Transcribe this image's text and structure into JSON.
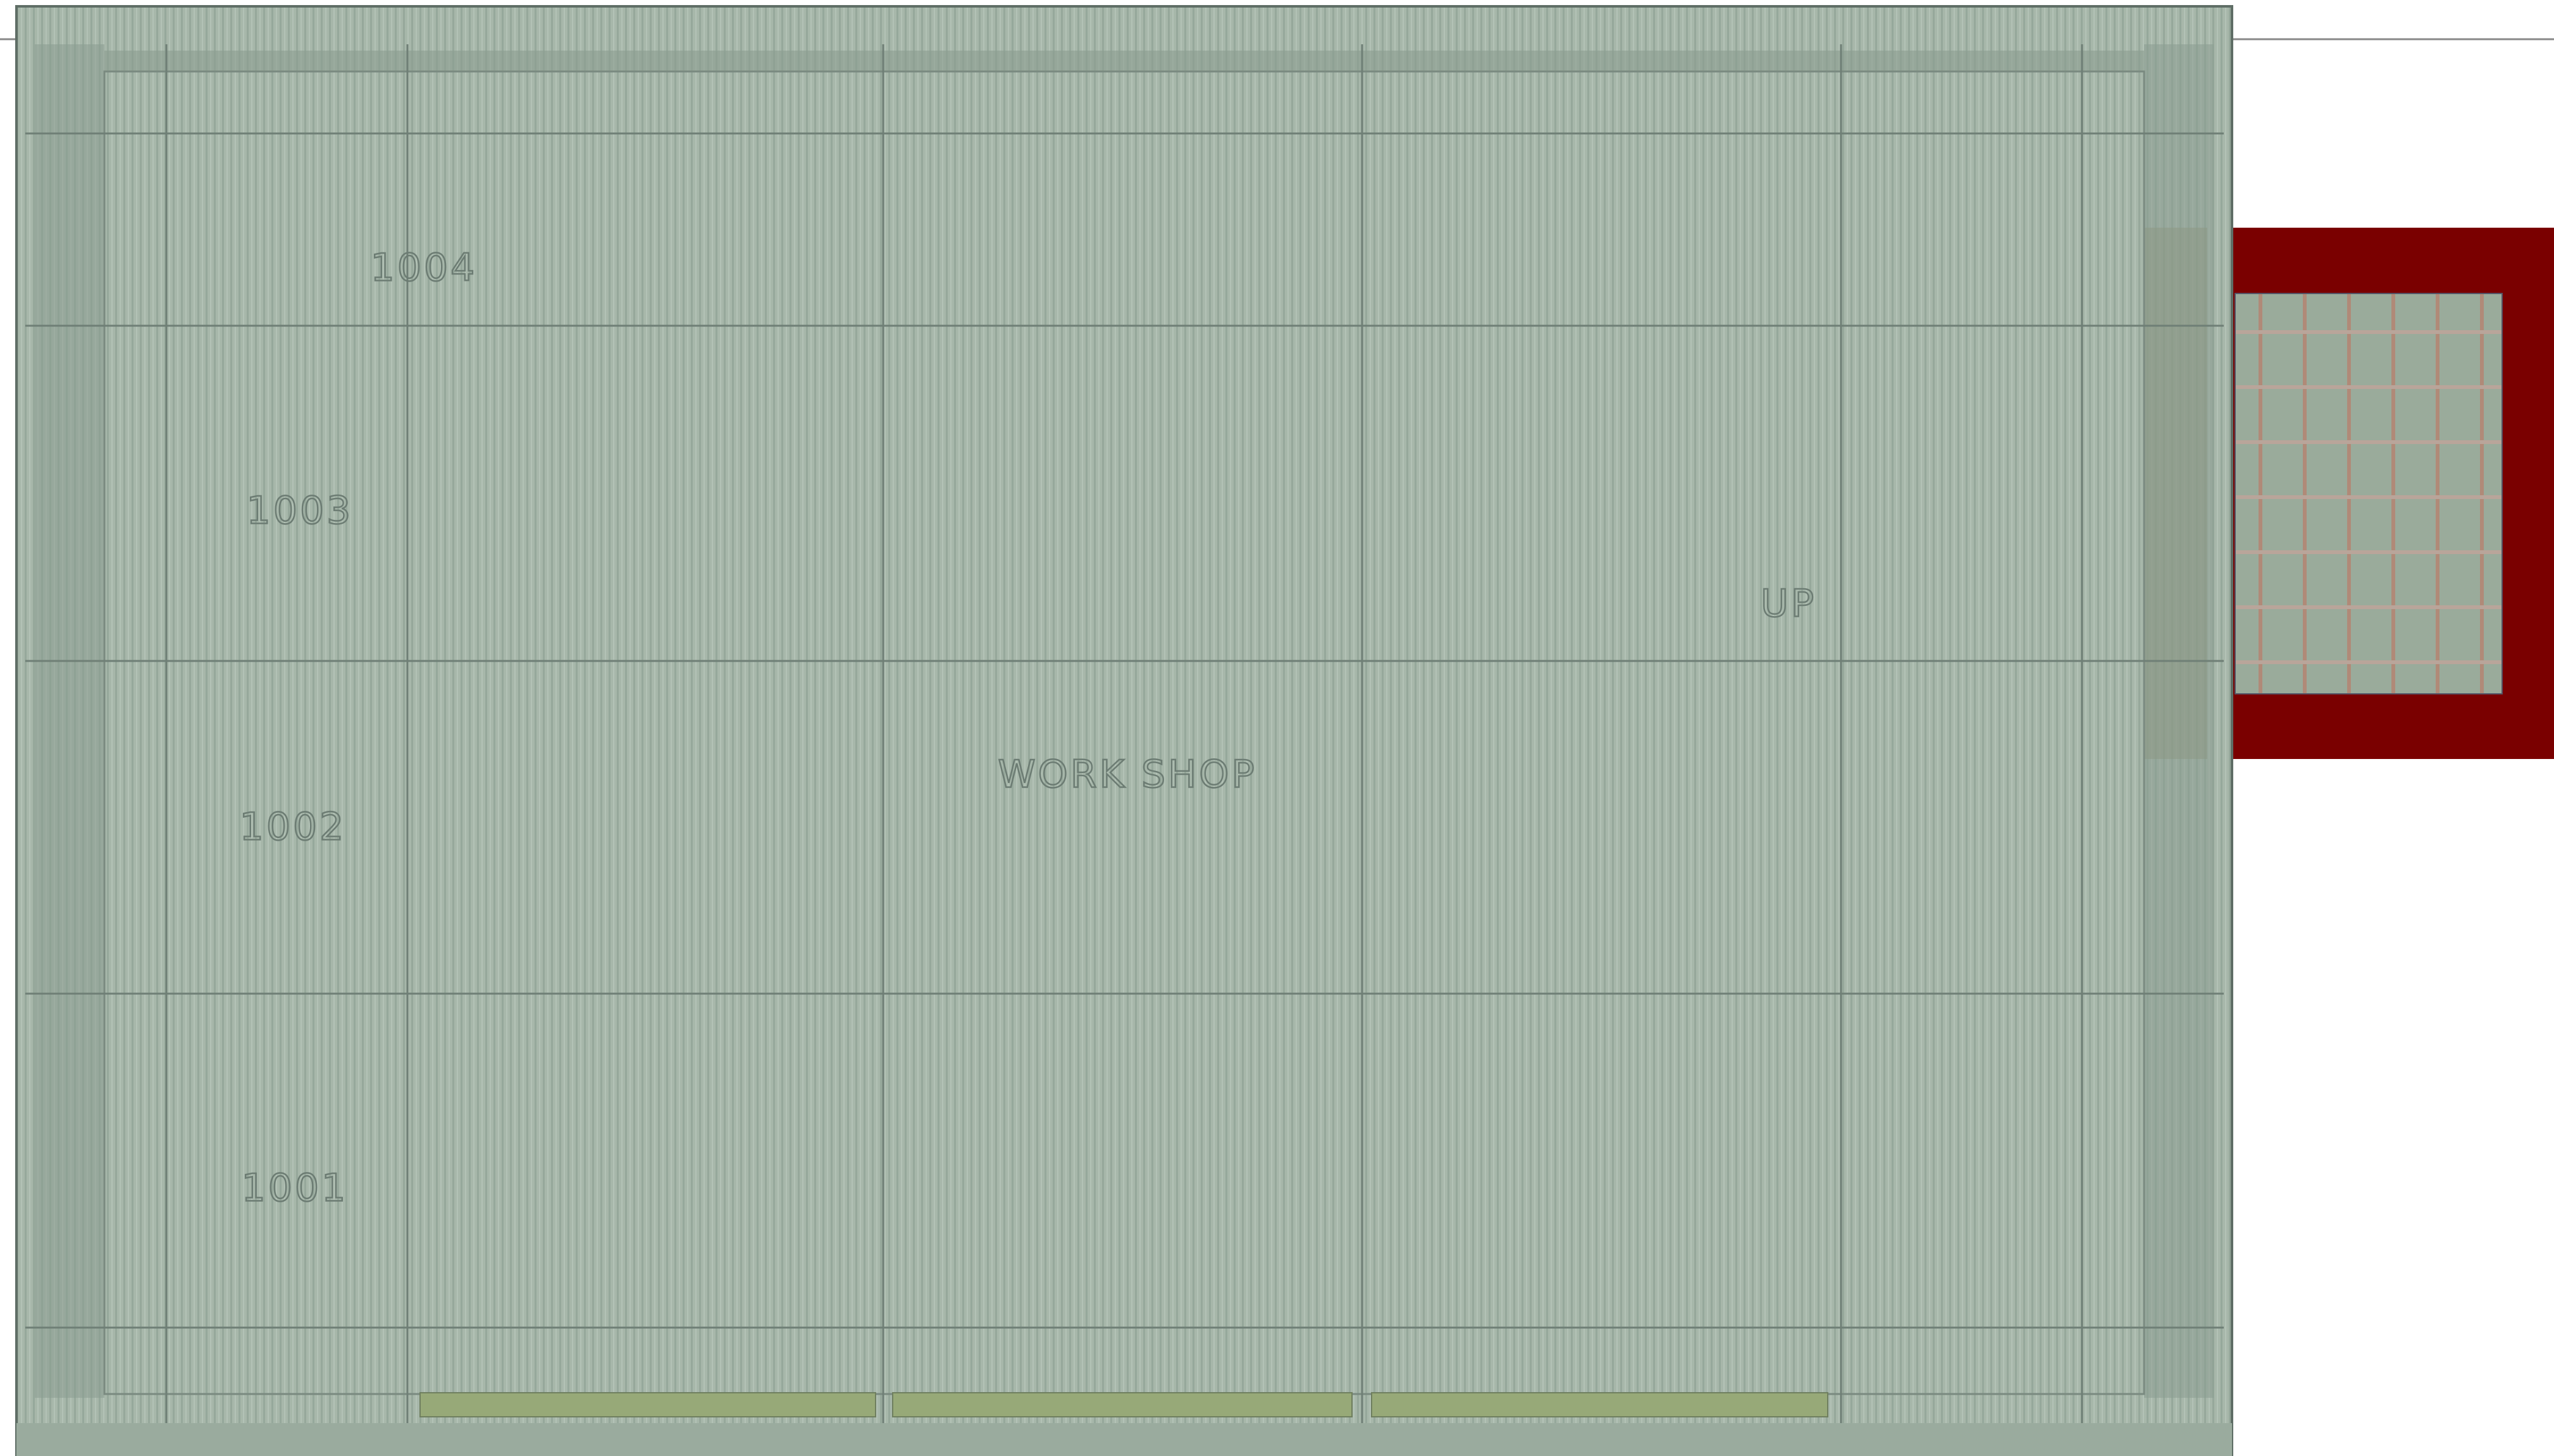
{
  "labels": {
    "room_1004": "1004",
    "room_1003": "1003",
    "room_1002": "1002",
    "room_1001": "1001",
    "main_room": "WORK SHOP",
    "stair": "UP"
  }
}
